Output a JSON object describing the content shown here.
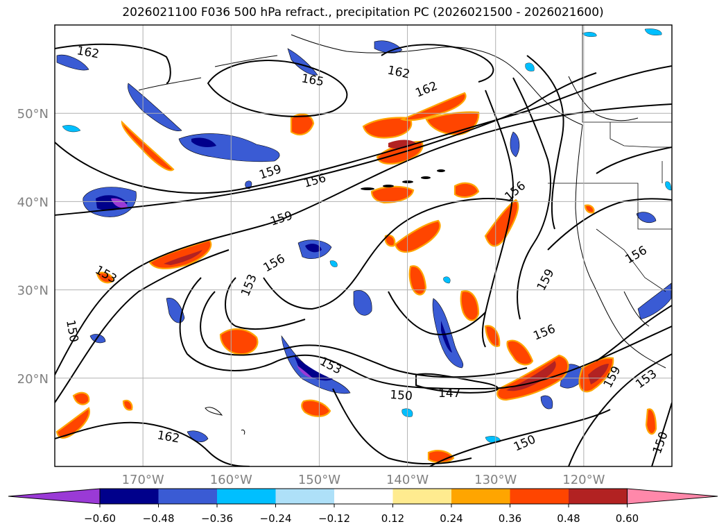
{
  "title": "2026021100 F036 500 hPa refract., precipitation PC (2026021500 - 2026021600)",
  "map": {
    "lat_labels": [
      {
        "label": "50°N",
        "lat": 50
      },
      {
        "label": "40°N",
        "lat": 40
      },
      {
        "label": "30°N",
        "lat": 30
      },
      {
        "label": "20°N",
        "lat": 20
      }
    ],
    "lon_labels": [
      {
        "label": "170°W",
        "lon": -170
      },
      {
        "label": "160°W",
        "lon": -160
      },
      {
        "label": "150°W",
        "lon": -150
      },
      {
        "label": "140°W",
        "lon": -140
      },
      {
        "label": "130°W",
        "lon": -130
      },
      {
        "label": "120°W",
        "lon": -120
      }
    ],
    "lon_range": [
      -180,
      -110
    ],
    "lat_range": [
      10,
      60
    ],
    "grid": true,
    "contour_labels": [
      "162",
      "165",
      "162",
      "162",
      "159",
      "156",
      "159",
      "156",
      "153",
      "153",
      "156",
      "159",
      "156",
      "150",
      "153",
      "150",
      "147",
      "156",
      "159",
      "153",
      "150",
      "150",
      "162"
    ]
  },
  "colorbar": {
    "ticks": [
      "−0.60",
      "−0.48",
      "−0.36",
      "−0.24",
      "−0.12",
      "0.12",
      "0.24",
      "0.36",
      "0.48",
      "0.60"
    ],
    "colors": [
      "#9a3ad6",
      "#00008b",
      "#3a5bd4",
      "#00bfff",
      "#aee0f8",
      "#ffffff",
      "#ffeb8f",
      "#ffa500",
      "#ff4500",
      "#b22222",
      "#ff88aa"
    ]
  }
}
